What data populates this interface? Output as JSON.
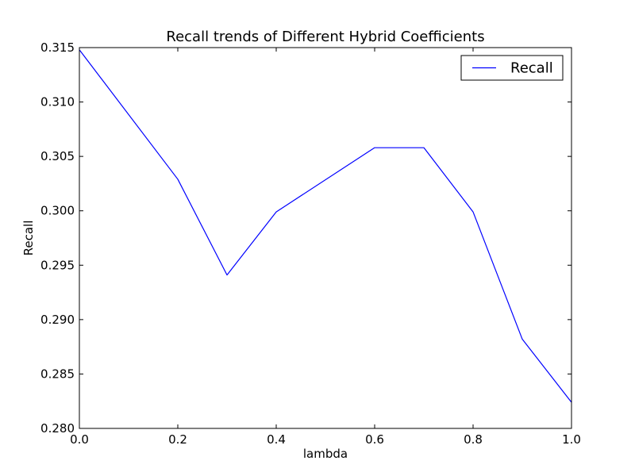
{
  "chart_data": {
    "type": "line",
    "title": "Recall trends of Different Hybrid Coefficients",
    "xlabel": "lambda",
    "ylabel": "Recall",
    "xlim": [
      0.0,
      1.0
    ],
    "ylim": [
      0.28,
      0.315
    ],
    "x_ticks": [
      "0.0",
      "0.2",
      "0.4",
      "0.6",
      "0.8",
      "1.0"
    ],
    "y_ticks": [
      "0.280",
      "0.285",
      "0.290",
      "0.295",
      "0.300",
      "0.305",
      "0.310",
      "0.315"
    ],
    "grid": false,
    "legend_position": "top-right",
    "series": [
      {
        "name": "Recall",
        "color": "#0000ff",
        "x": [
          0.0,
          0.2,
          0.3,
          0.4,
          0.6,
          0.7,
          0.8,
          0.9,
          1.0
        ],
        "y": [
          0.3148,
          0.3029,
          0.2941,
          0.2999,
          0.3058,
          0.3058,
          0.2999,
          0.2882,
          0.2824
        ]
      }
    ]
  }
}
